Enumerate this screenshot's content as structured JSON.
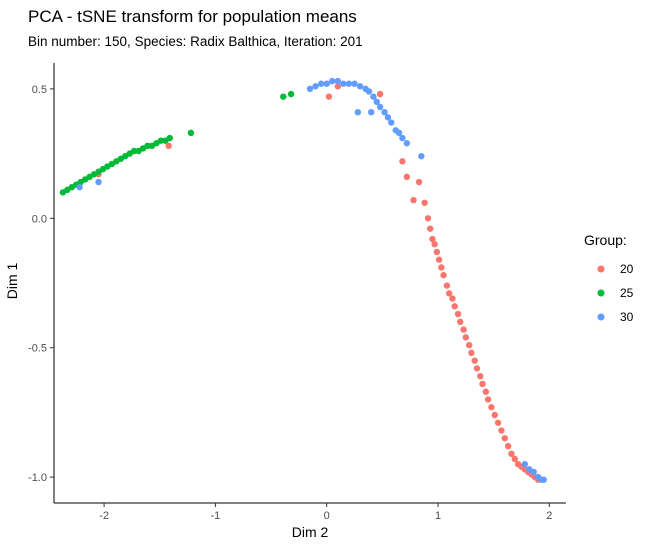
{
  "chart_data": {
    "type": "scatter",
    "title": "PCA - tSNE transform for population means",
    "subtitle": "Bin number: 150, Species: Radix Balthica, Iteration: 201",
    "xlabel": "Dim 2",
    "ylabel": "Dim 1",
    "xlim": [
      -2.45,
      2.15
    ],
    "ylim": [
      -1.1,
      0.6
    ],
    "x_ticks": [
      -2,
      -1,
      0,
      1,
      2
    ],
    "y_ticks": [
      -1.0,
      -0.5,
      0.0,
      0.5
    ],
    "x_tick_labels": [
      "-2",
      "-1",
      "0",
      "1",
      "2"
    ],
    "y_tick_labels": [
      "-1.0",
      "-0.5",
      "0.0",
      "0.5"
    ],
    "grid": false,
    "legend": {
      "title": "Group:",
      "position": "right"
    },
    "series": [
      {
        "name": "20",
        "color": "#F8766D",
        "points": [
          [
            -2.05,
            0.17
          ],
          [
            -1.42,
            0.28
          ],
          [
            0.02,
            0.47
          ],
          [
            0.1,
            0.51
          ],
          [
            0.48,
            0.48
          ],
          [
            0.68,
            0.22
          ],
          [
            0.72,
            0.16
          ],
          [
            0.78,
            0.07
          ],
          [
            0.83,
            0.14
          ],
          [
            0.88,
            0.06
          ],
          [
            0.91,
            0.0
          ],
          [
            0.93,
            -0.04
          ],
          [
            0.95,
            -0.08
          ],
          [
            0.97,
            -0.1
          ],
          [
            0.99,
            -0.13
          ],
          [
            1.01,
            -0.16
          ],
          [
            1.03,
            -0.19
          ],
          [
            1.05,
            -0.22
          ],
          [
            1.08,
            -0.26
          ],
          [
            1.1,
            -0.29
          ],
          [
            1.13,
            -0.31
          ],
          [
            1.15,
            -0.34
          ],
          [
            1.18,
            -0.37
          ],
          [
            1.2,
            -0.4
          ],
          [
            1.23,
            -0.43
          ],
          [
            1.25,
            -0.46
          ],
          [
            1.28,
            -0.49
          ],
          [
            1.3,
            -0.52
          ],
          [
            1.33,
            -0.55
          ],
          [
            1.35,
            -0.58
          ],
          [
            1.38,
            -0.61
          ],
          [
            1.4,
            -0.64
          ],
          [
            1.43,
            -0.67
          ],
          [
            1.45,
            -0.7
          ],
          [
            1.48,
            -0.73
          ],
          [
            1.51,
            -0.76
          ],
          [
            1.54,
            -0.79
          ],
          [
            1.57,
            -0.82
          ],
          [
            1.6,
            -0.85
          ],
          [
            1.63,
            -0.88
          ],
          [
            1.66,
            -0.91
          ],
          [
            1.69,
            -0.93
          ],
          [
            1.72,
            -0.95
          ],
          [
            1.75,
            -0.96
          ],
          [
            1.78,
            -0.97
          ],
          [
            1.81,
            -0.98
          ],
          [
            1.84,
            -0.99
          ],
          [
            1.87,
            -1.0
          ],
          [
            1.9,
            -1.01
          ]
        ]
      },
      {
        "name": "25",
        "color": "#00BA38",
        "points": [
          [
            -2.37,
            0.1
          ],
          [
            -2.33,
            0.11
          ],
          [
            -2.29,
            0.12
          ],
          [
            -2.25,
            0.13
          ],
          [
            -2.21,
            0.14
          ],
          [
            -2.17,
            0.15
          ],
          [
            -2.13,
            0.16
          ],
          [
            -2.09,
            0.17
          ],
          [
            -2.05,
            0.18
          ],
          [
            -2.01,
            0.19
          ],
          [
            -1.97,
            0.2
          ],
          [
            -1.93,
            0.21
          ],
          [
            -1.89,
            0.22
          ],
          [
            -1.85,
            0.23
          ],
          [
            -1.81,
            0.24
          ],
          [
            -1.77,
            0.25
          ],
          [
            -1.73,
            0.26
          ],
          [
            -1.69,
            0.26
          ],
          [
            -1.65,
            0.27
          ],
          [
            -1.61,
            0.28
          ],
          [
            -1.57,
            0.28
          ],
          [
            -1.53,
            0.29
          ],
          [
            -1.49,
            0.3
          ],
          [
            -1.45,
            0.3
          ],
          [
            -1.41,
            0.31
          ],
          [
            -1.22,
            0.33
          ],
          [
            -0.39,
            0.47
          ],
          [
            -0.32,
            0.48
          ]
        ]
      },
      {
        "name": "30",
        "color": "#619CFF",
        "points": [
          [
            -2.22,
            0.12
          ],
          [
            -2.05,
            0.14
          ],
          [
            -0.15,
            0.5
          ],
          [
            -0.1,
            0.51
          ],
          [
            -0.05,
            0.52
          ],
          [
            0.0,
            0.52
          ],
          [
            0.05,
            0.53
          ],
          [
            0.1,
            0.53
          ],
          [
            0.15,
            0.52
          ],
          [
            0.2,
            0.52
          ],
          [
            0.25,
            0.52
          ],
          [
            0.3,
            0.51
          ],
          [
            0.35,
            0.5
          ],
          [
            0.38,
            0.49
          ],
          [
            0.42,
            0.47
          ],
          [
            0.45,
            0.45
          ],
          [
            0.48,
            0.43
          ],
          [
            0.52,
            0.41
          ],
          [
            0.55,
            0.39
          ],
          [
            0.58,
            0.37
          ],
          [
            0.62,
            0.34
          ],
          [
            0.65,
            0.33
          ],
          [
            0.68,
            0.31
          ],
          [
            0.72,
            0.29
          ],
          [
            0.28,
            0.41
          ],
          [
            0.4,
            0.41
          ],
          [
            0.85,
            0.24
          ],
          [
            1.78,
            -0.95
          ],
          [
            1.82,
            -0.97
          ],
          [
            1.86,
            -0.98
          ],
          [
            1.9,
            -1.0
          ],
          [
            1.93,
            -1.01
          ],
          [
            1.95,
            -1.01
          ]
        ]
      }
    ]
  }
}
